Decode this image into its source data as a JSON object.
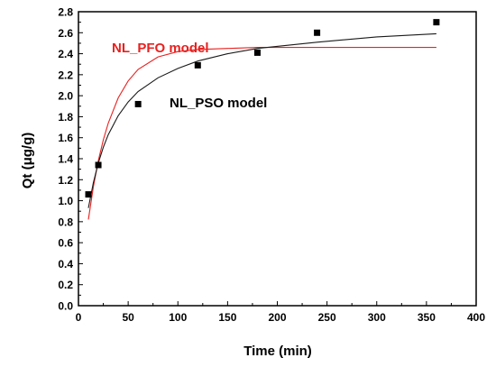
{
  "chart_data": {
    "type": "scatter",
    "xlabel": "Time (min)",
    "ylabel": "Qt (μg/g)",
    "xlim": [
      0,
      400
    ],
    "ylim": [
      0.0,
      2.8
    ],
    "xticks": [
      0,
      50,
      100,
      150,
      200,
      250,
      300,
      350,
      400
    ],
    "yticks": [
      0.0,
      0.2,
      0.4,
      0.6,
      0.8,
      1.0,
      1.2,
      1.4,
      1.6,
      1.8,
      2.0,
      2.2,
      2.4,
      2.6,
      2.8
    ],
    "grid": false,
    "points": {
      "x": [
        10,
        20,
        60,
        120,
        180,
        240,
        360
      ],
      "y": [
        1.06,
        1.34,
        1.92,
        2.29,
        2.41,
        2.6,
        2.7
      ],
      "marker": "square",
      "color": "#000000"
    },
    "curves": [
      {
        "name": "NL_PFO model",
        "color": "#e8211f",
        "label_color": "#e8211f",
        "x": [
          10,
          15,
          20,
          25,
          30,
          40,
          50,
          60,
          80,
          100,
          120,
          150,
          180,
          240,
          300,
          360
        ],
        "y": [
          0.82,
          1.13,
          1.38,
          1.58,
          1.74,
          1.98,
          2.14,
          2.25,
          2.37,
          2.42,
          2.44,
          2.45,
          2.46,
          2.46,
          2.46,
          2.46
        ]
      },
      {
        "name": "NL_PSO model",
        "color": "#1a1a1a",
        "label_color": "#000000",
        "x": [
          10,
          15,
          20,
          25,
          30,
          40,
          50,
          60,
          80,
          100,
          120,
          150,
          180,
          240,
          300,
          360
        ],
        "y": [
          0.93,
          1.17,
          1.36,
          1.51,
          1.63,
          1.81,
          1.94,
          2.04,
          2.17,
          2.26,
          2.33,
          2.4,
          2.45,
          2.51,
          2.56,
          2.59
        ]
      }
    ]
  }
}
